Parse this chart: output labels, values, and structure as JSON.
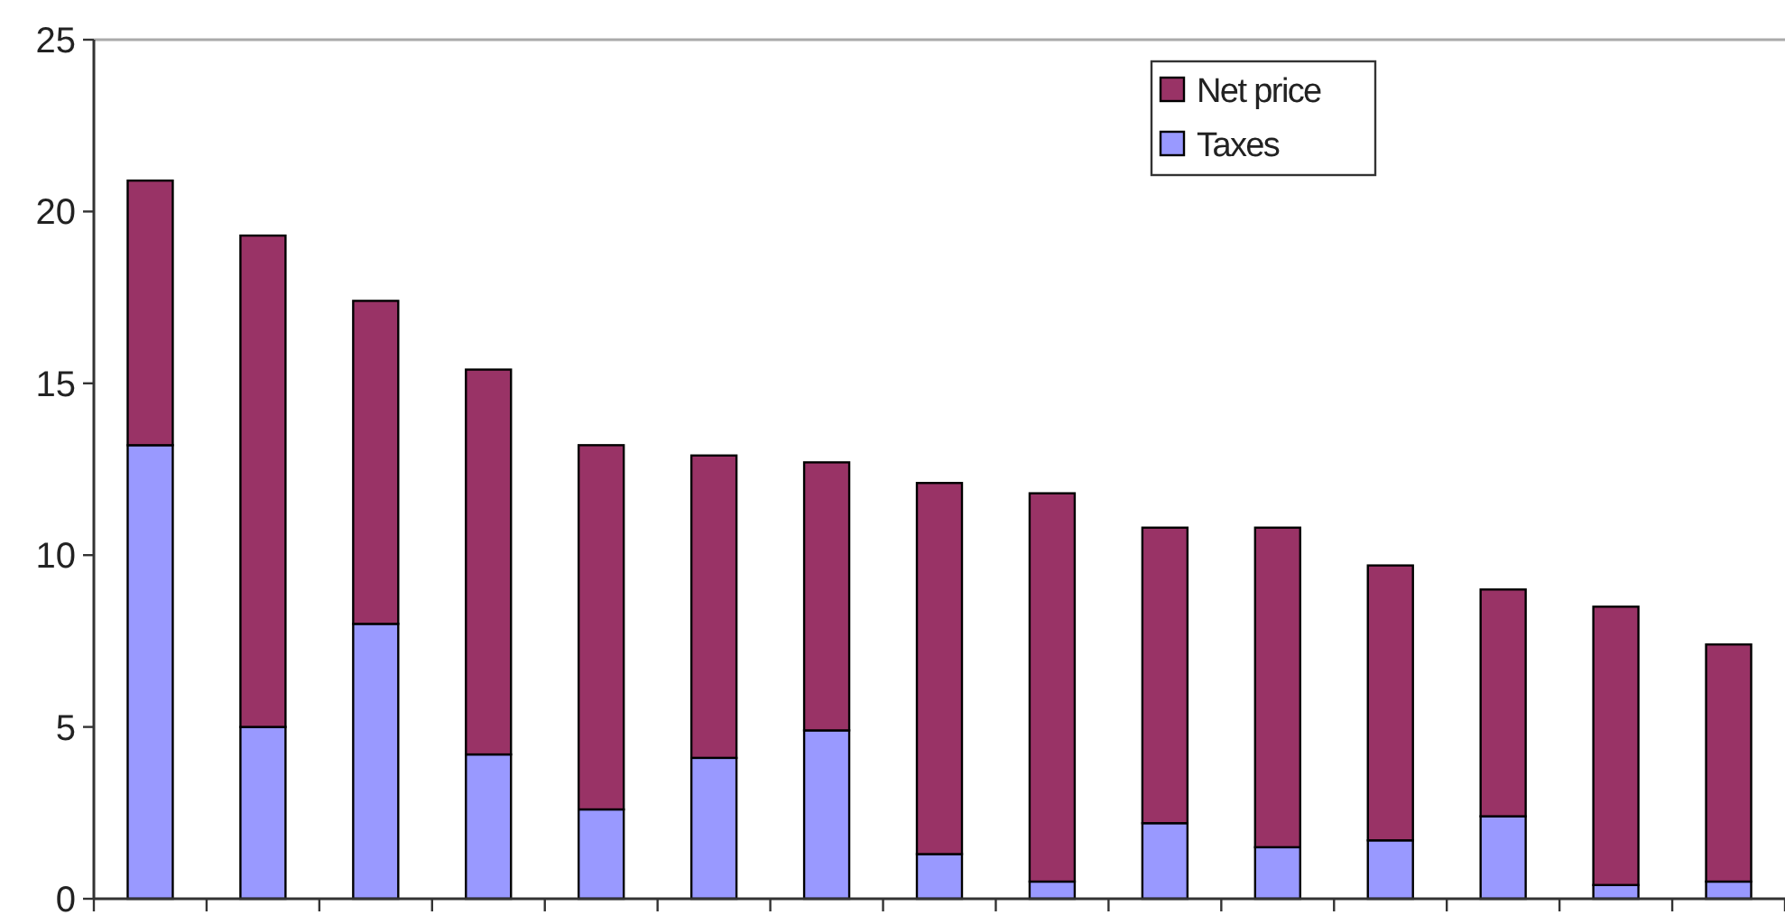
{
  "chart_data": {
    "type": "bar",
    "stacked": true,
    "categories": [
      null,
      null,
      null,
      null,
      null,
      null,
      null,
      null,
      null,
      null,
      null,
      null,
      null,
      null,
      null
    ],
    "series": [
      {
        "name": "Taxes",
        "color": "#9999ff",
        "values": [
          13.2,
          5.0,
          8.0,
          4.2,
          2.6,
          4.1,
          4.9,
          1.3,
          0.5,
          2.2,
          1.5,
          1.7,
          2.4,
          0.4,
          0.5
        ]
      },
      {
        "name": "Net price",
        "color": "#993366",
        "values": [
          7.7,
          14.3,
          9.4,
          11.2,
          10.6,
          8.8,
          7.8,
          10.8,
          11.3,
          8.6,
          9.3,
          8.0,
          6.6,
          8.1,
          6.9
        ]
      }
    ],
    "ylim": [
      0,
      25
    ],
    "yticks": [
      0,
      5,
      10,
      15,
      20,
      25
    ],
    "grid": false,
    "legend": "top right"
  }
}
